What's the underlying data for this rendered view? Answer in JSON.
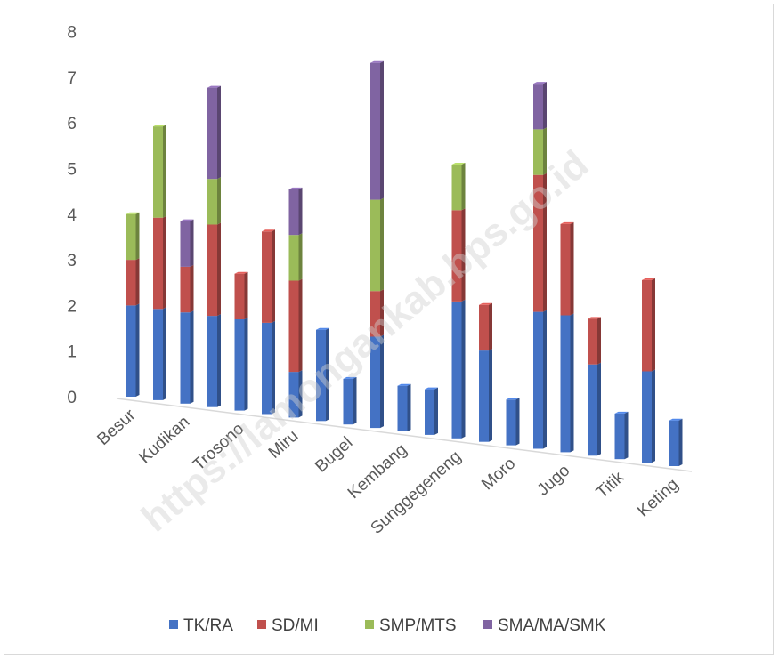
{
  "chart_data": {
    "type": "bar",
    "stacked": true,
    "style": "3d-perspective",
    "categories": [
      "Besur",
      "",
      "Kudikan",
      "",
      "Trosono",
      "",
      "Miru",
      "",
      "Bugel",
      "",
      "Kembang",
      "",
      "Sunggegeneng",
      "",
      "Moro",
      "",
      "Jugo",
      "",
      "Titik",
      "",
      "Keting"
    ],
    "series": [
      {
        "name": "TK/RA",
        "color": "#4472c4",
        "values": [
          2,
          2,
          2,
          2,
          2,
          2,
          1,
          2,
          1,
          2,
          1,
          1,
          3,
          2,
          1,
          3,
          3,
          2,
          1,
          2,
          1
        ]
      },
      {
        "name": "SD/MI",
        "color": "#c0504d",
        "values": [
          1,
          2,
          1,
          2,
          1,
          2,
          2,
          0,
          0,
          1,
          0,
          0,
          2,
          1,
          0,
          3,
          2,
          1,
          0,
          2,
          0
        ]
      },
      {
        "name": "SMP/MTS",
        "color": "#9bbb59",
        "values": [
          1,
          2,
          0,
          1,
          0,
          0,
          1,
          0,
          0,
          2,
          0,
          0,
          1,
          0,
          0,
          1,
          0,
          0,
          0,
          0,
          0
        ]
      },
      {
        "name": "SMA/MA/SMK",
        "color": "#8064a2",
        "values": [
          0,
          0,
          1,
          2,
          0,
          0,
          1,
          0,
          0,
          3,
          0,
          0,
          0,
          0,
          0,
          1,
          0,
          0,
          0,
          0,
          0
        ]
      }
    ],
    "ylim": [
      0,
      8
    ],
    "yticks": [
      "0",
      "1",
      "2",
      "3",
      "4",
      "5",
      "6",
      "7",
      "8"
    ],
    "title": "",
    "xlabel": "",
    "ylabel": "",
    "legend_position": "bottom",
    "grid": false
  },
  "watermark": "https://lamongankab.bps.go.id"
}
